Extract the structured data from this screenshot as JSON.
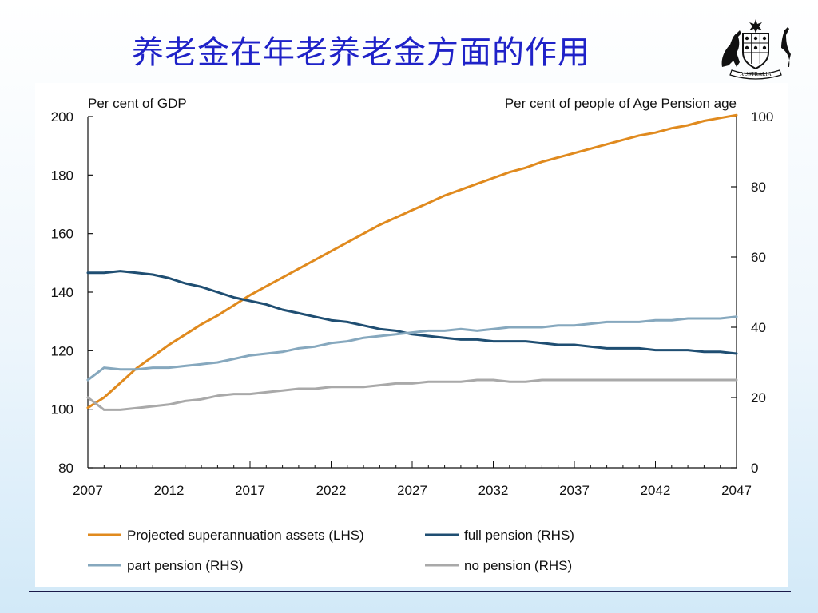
{
  "slide": {
    "title": "养老金在年老养老金方面的作用",
    "logo_text": "AUSTRALIA"
  },
  "colors": {
    "title": "#1f22c8",
    "super": "#e08a1e",
    "full": "#1f4e72",
    "part": "#86a8be",
    "none": "#a9a9a9"
  },
  "chart_data": {
    "type": "line",
    "left_axis_label": "Per cent of GDP",
    "right_axis_label": "Per cent of people of Age Pension age",
    "x_ticks": [
      "2007",
      "2012",
      "2017",
      "2022",
      "2027",
      "2032",
      "2037",
      "2042",
      "2047"
    ],
    "ylim_left": [
      80,
      200
    ],
    "yticks_left": [
      "80",
      "100",
      "120",
      "140",
      "160",
      "180",
      "200"
    ],
    "ylim_right": [
      0,
      100
    ],
    "yticks_right": [
      "0",
      "20",
      "40",
      "60",
      "80",
      "100"
    ],
    "x": [
      2007,
      2008,
      2009,
      2010,
      2011,
      2012,
      2013,
      2014,
      2015,
      2016,
      2017,
      2018,
      2019,
      2020,
      2021,
      2022,
      2023,
      2024,
      2025,
      2026,
      2027,
      2028,
      2029,
      2030,
      2031,
      2032,
      2033,
      2034,
      2035,
      2036,
      2037,
      2038,
      2039,
      2040,
      2041,
      2042,
      2043,
      2044,
      2045,
      2046,
      2047
    ],
    "series": [
      {
        "name": "Projected superannuation assets (LHS)",
        "axis": "left",
        "color_key": "super",
        "values": [
          100.5,
          104,
          109,
          114,
          118,
          122,
          125.5,
          129,
          132,
          135.5,
          139,
          142,
          145,
          148,
          151,
          154,
          157,
          160,
          163,
          165.5,
          168,
          170.5,
          173,
          175,
          177,
          179,
          181,
          182.5,
          184.5,
          186,
          187.5,
          189,
          190.5,
          192,
          193.5,
          194.5,
          196,
          197,
          198.5,
          199.5,
          200.5
        ]
      },
      {
        "name": "full pension (RHS)",
        "axis": "right",
        "color_key": "full",
        "values": [
          55.5,
          55.5,
          56,
          55.5,
          55,
          54,
          52.5,
          51.5,
          50,
          48.5,
          47.5,
          46.5,
          45,
          44,
          43,
          42,
          41.5,
          40.5,
          39.5,
          39,
          38,
          37.5,
          37,
          36.5,
          36.5,
          36,
          36,
          36,
          35.5,
          35,
          35,
          34.5,
          34,
          34,
          34,
          33.5,
          33.5,
          33.5,
          33,
          33,
          32.5
        ]
      },
      {
        "name": "part pension (RHS)",
        "axis": "right",
        "color_key": "part",
        "values": [
          25,
          28.5,
          28,
          28,
          28.5,
          28.5,
          29,
          29.5,
          30,
          31,
          32,
          32.5,
          33,
          34,
          34.5,
          35.5,
          36,
          37,
          37.5,
          38,
          38.5,
          39,
          39,
          39.5,
          39,
          39.5,
          40,
          40,
          40,
          40.5,
          40.5,
          41,
          41.5,
          41.5,
          41.5,
          42,
          42,
          42.5,
          42.5,
          42.5,
          43
        ]
      },
      {
        "name": "no pension (RHS)",
        "axis": "right",
        "color_key": "none",
        "values": [
          20,
          16.5,
          16.5,
          17,
          17.5,
          18,
          19,
          19.5,
          20.5,
          21,
          21,
          21.5,
          22,
          22.5,
          22.5,
          23,
          23,
          23,
          23.5,
          24,
          24,
          24.5,
          24.5,
          24.5,
          25,
          25,
          24.5,
          24.5,
          25,
          25,
          25,
          25,
          25,
          25,
          25,
          25,
          25,
          25,
          25,
          25,
          25
        ]
      }
    ],
    "legend_placement": "bottom",
    "grid": false
  }
}
